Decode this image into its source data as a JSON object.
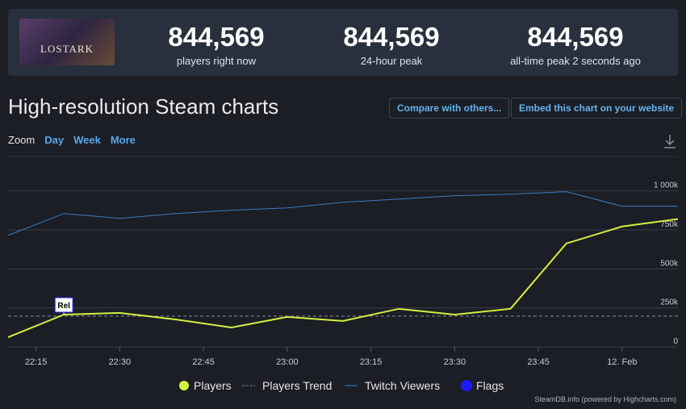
{
  "header": {
    "image_text": "LOSTARK",
    "stats": [
      {
        "value": "844,569",
        "label": "players right now"
      },
      {
        "value": "844,569",
        "label": "24-hour peak"
      },
      {
        "value": "844,569",
        "label": "all-time peak 2 seconds ago"
      }
    ]
  },
  "title": "High-resolution Steam charts",
  "buttons": [
    "Compare with others...",
    "Embed this chart on your website"
  ],
  "zoom": {
    "label": "Zoom",
    "options": [
      "Day",
      "Week",
      "More"
    ]
  },
  "credits": "SteamDB.info (powered by Highcharts.com)",
  "chart_data": {
    "type": "line",
    "x": [
      "22:10",
      "22:20",
      "22:30",
      "22:40",
      "22:50",
      "23:00",
      "23:10",
      "23:20",
      "23:30",
      "23:40",
      "23:50",
      "00:00",
      "00:10"
    ],
    "xticks": [
      "22:15",
      "22:30",
      "22:45",
      "23:00",
      "23:15",
      "23:30",
      "23:45",
      {
        "value": "00:00",
        "label": "12. Feb"
      }
    ],
    "ylim": [
      0,
      1200000
    ],
    "yticks": [
      0,
      {
        "value": 250000,
        "label": "250k"
      },
      {
        "value": 500000,
        "label": "500k"
      },
      {
        "value": 750000,
        "label": "750k"
      },
      {
        "value": 1000000,
        "label": "1 000k"
      }
    ],
    "grid": true,
    "series": [
      {
        "name": "Players",
        "color": "#d4f042",
        "values": [
          62000,
          207000,
          218000,
          176000,
          124000,
          192000,
          166000,
          244000,
          207000,
          244000,
          663000,
          772000,
          820000
        ]
      },
      {
        "name": "Players Trend",
        "color": "#8a8f96",
        "dashed": true,
        "values": [
          197000,
          197000,
          197000,
          197000,
          197000,
          197000,
          197000,
          197000,
          197000,
          197000,
          197000,
          197000,
          197000
        ]
      },
      {
        "name": "Twitch Viewers",
        "color": "#3f7cc0",
        "values": [
          715000,
          855000,
          824000,
          855000,
          876000,
          891000,
          927000,
          948000,
          969000,
          979000,
          995000,
          902000,
          902000
        ]
      }
    ],
    "flags": {
      "name": "Flags",
      "color": "#1a1aff",
      "items": [
        {
          "x": "22:20",
          "text": "Rel"
        }
      ]
    }
  }
}
